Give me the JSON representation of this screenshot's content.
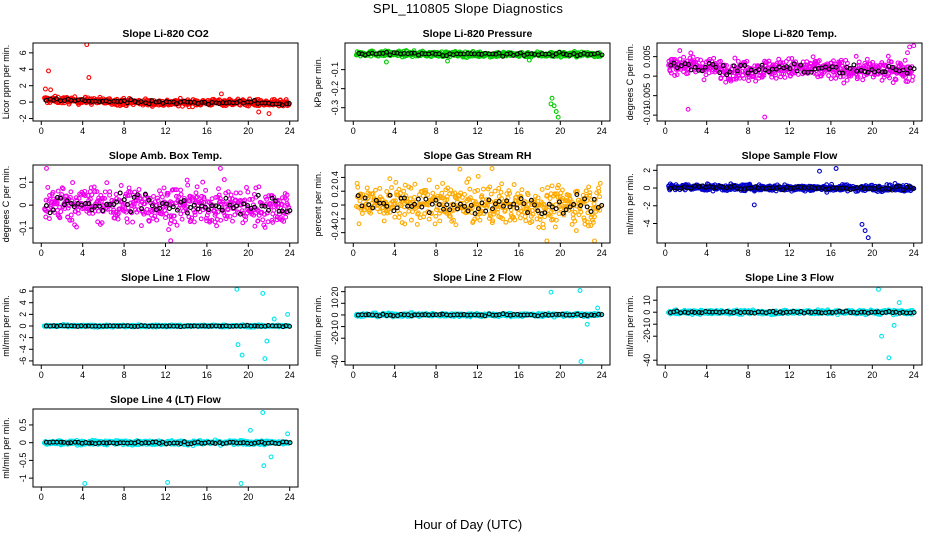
{
  "title": "SPL_110805  Slope Diagnostics",
  "xlabel": "Hour of Day (UTC)",
  "chart_data": [
    {
      "type": "scatter",
      "title": "Slope Li-820 CO2",
      "ylabel": "Licor ppm per min.",
      "xlim": [
        -0.8,
        24.8
      ],
      "ylim": [
        -2.3,
        7.2
      ],
      "xticks": [
        0,
        4,
        8,
        12,
        16,
        20,
        24
      ],
      "yticks": [
        -2,
        0,
        2,
        4,
        6
      ],
      "color": "#ff0000",
      "spread": 0.35,
      "trend": [
        [
          0,
          0.3
        ],
        [
          6,
          0.1
        ],
        [
          12,
          -0.1
        ],
        [
          18,
          0.0
        ],
        [
          24,
          -0.2
        ]
      ],
      "outliers": [
        [
          0.4,
          1.6
        ],
        [
          0.7,
          3.8
        ],
        [
          0.9,
          1.5
        ],
        [
          4.4,
          7.0
        ],
        [
          4.6,
          3.0
        ],
        [
          21.0,
          -1.2
        ],
        [
          22.0,
          -1.4
        ],
        [
          17.4,
          1.0
        ]
      ]
    },
    {
      "type": "scatter",
      "title": "Slope Li-820 Pressure",
      "ylabel": "kPa per min.",
      "xlim": [
        -0.8,
        24.8
      ],
      "ylim": [
        -0.37,
        0.04
      ],
      "xticks": [
        0,
        4,
        8,
        12,
        16,
        20,
        24
      ],
      "yticks": [
        -0.3,
        -0.2,
        -0.1
      ],
      "color": "#00cc00",
      "spread": 0.012,
      "trend": [
        [
          0,
          -0.015
        ],
        [
          12,
          -0.02
        ],
        [
          24,
          -0.02
        ]
      ],
      "outliers": [
        [
          19.2,
          -0.25
        ],
        [
          19.4,
          -0.29
        ],
        [
          19.6,
          -0.32
        ],
        [
          19.8,
          -0.35
        ],
        [
          19.1,
          -0.28
        ],
        [
          3.2,
          -0.06
        ],
        [
          9.1,
          -0.055
        ],
        [
          17.0,
          -0.05
        ]
      ]
    },
    {
      "type": "scatter",
      "title": "Slope Li-820 Temp.",
      "ylabel": "degrees C per min.",
      "xlim": [
        -0.8,
        24.8
      ],
      "ylim": [
        -0.0115,
        0.0085
      ],
      "xticks": [
        0,
        4,
        8,
        12,
        16,
        20,
        24
      ],
      "yticks": [
        -0.01,
        -0.005,
        0.0,
        0.005
      ],
      "color": "#ee00ee",
      "spread": 0.0022,
      "trend": [
        [
          0,
          0.0035
        ],
        [
          6,
          0.0015
        ],
        [
          12,
          0.002
        ],
        [
          18,
          0.0015
        ],
        [
          24,
          0.0015
        ]
      ],
      "outliers": [
        [
          23.6,
          0.0075
        ],
        [
          24.0,
          0.0078
        ],
        [
          23.4,
          0.006
        ],
        [
          9.6,
          -0.0105
        ],
        [
          2.2,
          -0.0085
        ]
      ]
    },
    {
      "type": "scatter",
      "title": "Slope Amb. Box Temp.",
      "ylabel": "degrees C per min.",
      "xlim": [
        -0.8,
        24.8
      ],
      "ylim": [
        -0.165,
        0.175
      ],
      "xticks": [
        0,
        4,
        8,
        12,
        16,
        20,
        24
      ],
      "yticks": [
        -0.1,
        0.0,
        0.1
      ],
      "color": "#ee00ee",
      "spread": 0.07,
      "trend": [
        [
          0,
          0.01
        ],
        [
          12,
          0.0
        ],
        [
          24,
          -0.01
        ]
      ],
      "outliers": [
        [
          0.5,
          0.16
        ],
        [
          12.5,
          -0.155
        ],
        [
          17.3,
          0.16
        ]
      ]
    },
    {
      "type": "scatter",
      "title": "Slope Gas Stream RH",
      "ylabel": "percent per min.",
      "xlim": [
        -0.8,
        24.8
      ],
      "ylim": [
        -0.55,
        0.58
      ],
      "xticks": [
        0,
        4,
        8,
        12,
        16,
        20,
        24
      ],
      "yticks": [
        -0.4,
        -0.2,
        0.0,
        0.2,
        0.4
      ],
      "color": "#ffaa00",
      "spread": 0.24,
      "trend": [
        [
          0,
          0.05
        ],
        [
          12,
          0.0
        ],
        [
          24,
          0.0
        ]
      ],
      "outliers": [
        [
          10.3,
          0.52
        ],
        [
          13.4,
          0.53
        ],
        [
          18.7,
          -0.52
        ],
        [
          23.3,
          -0.52
        ]
      ]
    },
    {
      "type": "scatter",
      "title": "Slope Sample Flow",
      "ylabel": "ml/min per min.",
      "xlim": [
        -0.8,
        24.8
      ],
      "ylim": [
        -6.2,
        2.6
      ],
      "xticks": [
        0,
        4,
        8,
        12,
        16,
        20,
        24
      ],
      "yticks": [
        -4,
        -2,
        0,
        2
      ],
      "color": "#0000cc",
      "spread": 0.3,
      "trend": [
        [
          0,
          0.1
        ],
        [
          12,
          0.0
        ],
        [
          24,
          0.0
        ]
      ],
      "outliers": [
        [
          19.0,
          -4.1
        ],
        [
          19.3,
          -4.8
        ],
        [
          19.6,
          -5.6
        ],
        [
          16.5,
          2.2
        ],
        [
          14.9,
          1.9
        ],
        [
          8.6,
          -1.9
        ]
      ]
    },
    {
      "type": "scatter",
      "title": "Slope Line 1 Flow",
      "ylabel": "ml/min per min.",
      "xlim": [
        -0.8,
        24.8
      ],
      "ylim": [
        -6.7,
        6.7
      ],
      "xticks": [
        0,
        4,
        8,
        12,
        16,
        20,
        24
      ],
      "yticks": [
        -6,
        -4,
        -2,
        0,
        2,
        4,
        6
      ],
      "color": "#00e5ee",
      "spread": 0.15,
      "trend": [
        [
          0,
          0.0
        ],
        [
          24,
          0.0
        ]
      ],
      "outliers": [
        [
          18.9,
          6.3
        ],
        [
          21.4,
          5.6
        ],
        [
          19.0,
          -3.2
        ],
        [
          19.4,
          -5.0
        ],
        [
          21.6,
          -5.6
        ],
        [
          21.8,
          -2.6
        ],
        [
          22.5,
          1.2
        ],
        [
          23.8,
          2.0
        ]
      ]
    },
    {
      "type": "scatter",
      "title": "Slope Line 2 Flow",
      "ylabel": "ml/min per min.",
      "xlim": [
        -0.8,
        24.8
      ],
      "ylim": [
        -43,
        24
      ],
      "xticks": [
        0,
        4,
        8,
        12,
        16,
        20,
        24
      ],
      "yticks": [
        -40,
        -20,
        -10,
        0,
        10,
        20
      ],
      "color": "#00e5ee",
      "spread": 1.2,
      "trend": [
        [
          0,
          0.0
        ],
        [
          24,
          0.0
        ]
      ],
      "outliers": [
        [
          19.1,
          19.5
        ],
        [
          21.9,
          21.0
        ],
        [
          22.0,
          -40.0
        ],
        [
          23.6,
          6.0
        ],
        [
          22.6,
          -8.0
        ]
      ]
    },
    {
      "type": "scatter",
      "title": "Slope Line 3 Flow",
      "ylabel": "ml/min per min.",
      "xlim": [
        -0.8,
        24.8
      ],
      "ylim": [
        -44,
        21
      ],
      "xticks": [
        0,
        4,
        8,
        12,
        16,
        20,
        24
      ],
      "yticks": [
        -40,
        -20,
        -10,
        0,
        10
      ],
      "color": "#00e5ee",
      "spread": 1.5,
      "trend": [
        [
          0,
          0.0
        ],
        [
          24,
          0.0
        ]
      ],
      "outliers": [
        [
          20.6,
          19.0
        ],
        [
          20.9,
          -20.0
        ],
        [
          21.6,
          -38.0
        ],
        [
          22.1,
          -11.0
        ],
        [
          22.6,
          8.0
        ]
      ]
    },
    {
      "type": "scatter",
      "title": "Slope Line 4 (LT) Flow",
      "ylabel": "ml/min per min.",
      "xlim": [
        -0.8,
        24.8
      ],
      "ylim": [
        -1.25,
        0.95
      ],
      "xticks": [
        0,
        4,
        8,
        12,
        16,
        20,
        24
      ],
      "yticks": [
        -1.0,
        -0.5,
        0.0,
        0.5
      ],
      "color": "#00e5ee",
      "spread": 0.05,
      "trend": [
        [
          0,
          0.0
        ],
        [
          24,
          0.0
        ]
      ],
      "outliers": [
        [
          4.2,
          -1.15
        ],
        [
          12.2,
          -1.12
        ],
        [
          19.3,
          -1.15
        ],
        [
          21.4,
          0.85
        ],
        [
          20.2,
          0.35
        ],
        [
          21.5,
          -0.65
        ],
        [
          22.2,
          -0.4
        ],
        [
          23.8,
          0.25
        ]
      ]
    }
  ]
}
